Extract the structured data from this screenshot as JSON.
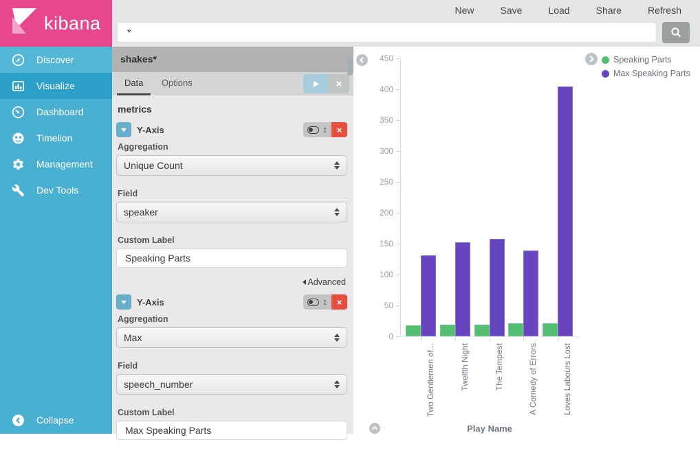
{
  "brand": {
    "name": "kibana",
    "color": "#E8478B"
  },
  "topnav": {
    "items": [
      "New",
      "Save",
      "Load",
      "Share",
      "Refresh"
    ]
  },
  "search": {
    "value": "*"
  },
  "icons": {
    "close": "×",
    "move": "↕"
  },
  "sidebar": {
    "items": [
      {
        "label": "Discover",
        "icon": "compass-icon",
        "active": false
      },
      {
        "label": "Visualize",
        "icon": "bar-chart-icon",
        "active": true
      },
      {
        "label": "Dashboard",
        "icon": "gauge-icon",
        "active": false
      },
      {
        "label": "Timelion",
        "icon": "owl-icon",
        "active": false
      },
      {
        "label": "Management",
        "icon": "gear-icon",
        "active": false
      },
      {
        "label": "Dev Tools",
        "icon": "wrench-icon",
        "active": false
      }
    ],
    "collapse_label": "Collapse"
  },
  "config_panel": {
    "index_pattern": "shakes*",
    "tabs": [
      {
        "label": "Data",
        "active": true
      },
      {
        "label": "Options",
        "active": false
      }
    ],
    "section_title": "metrics",
    "metrics": [
      {
        "title": "Y-Axis",
        "aggregation_label": "Aggregation",
        "aggregation": "Unique Count",
        "field_label": "Field",
        "field": "speaker",
        "custom_label_label": "Custom Label",
        "custom_label": "Speaking Parts",
        "advanced_label": "Advanced"
      },
      {
        "title": "Y-Axis",
        "aggregation_label": "Aggregation",
        "aggregation": "Max",
        "field_label": "Field",
        "field": "speech_number",
        "custom_label_label": "Custom Label",
        "custom_label": "Max Speaking Parts"
      }
    ]
  },
  "chart_data": {
    "type": "bar",
    "title": "",
    "xlabel": "Play Name",
    "ylabel": "",
    "ylim": [
      0,
      450
    ],
    "ytick_step": 50,
    "grid": false,
    "legend_position": "top-right",
    "categories": [
      "Two Gentlemen of...",
      "Twelfth Night",
      "The Tempest",
      "A Comedy of Errors",
      "Loves Labours Lost"
    ],
    "series": [
      {
        "name": "Speaking Parts",
        "color": "#54BE73",
        "edge_color": "#76CB92",
        "values": [
          18,
          19,
          19,
          21,
          21
        ]
      },
      {
        "name": "Max Speaking Parts",
        "color": "#6745BE",
        "edge_color": "#8A70CE",
        "values": [
          131,
          152,
          158,
          139,
          404
        ]
      }
    ]
  }
}
